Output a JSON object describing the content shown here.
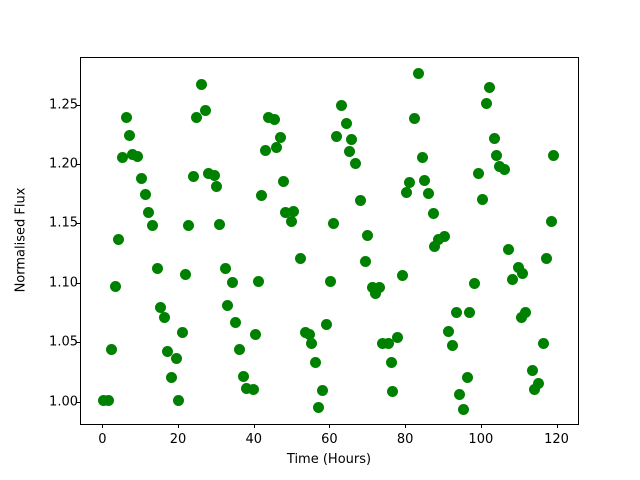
{
  "figure": {
    "background": "#ffffff",
    "text_color": "#000000"
  },
  "chart_data": {
    "type": "scatter",
    "title": "",
    "xlabel": "Time (Hours)",
    "ylabel": "Normalised Flux",
    "legend": null,
    "grid": false,
    "marker": "circle",
    "marker_color": "#008000",
    "marker_diameter_px": 11,
    "xlim": [
      -5.9,
      125.4
    ],
    "ylim": [
      0.982,
      1.29
    ],
    "x_ticks": [
      0,
      20,
      40,
      60,
      80,
      100,
      120
    ],
    "x_tick_labels": [
      "0",
      "20",
      "40",
      "60",
      "80",
      "100",
      "120"
    ],
    "y_ticks": [
      1.0,
      1.05,
      1.1,
      1.15,
      1.2,
      1.25
    ],
    "y_tick_labels": [
      "1.00",
      "1.05",
      "1.10",
      "1.15",
      "1.20",
      "1.25"
    ],
    "points": [
      [
        0.0,
        1.002
      ],
      [
        1.4,
        1.002
      ],
      [
        2.1,
        1.045
      ],
      [
        3.2,
        1.098
      ],
      [
        4.0,
        1.137
      ],
      [
        5.0,
        1.206
      ],
      [
        6.1,
        1.24
      ],
      [
        6.9,
        1.225
      ],
      [
        7.7,
        1.209
      ],
      [
        9.1,
        1.207
      ],
      [
        10.0,
        1.189
      ],
      [
        11.1,
        1.175
      ],
      [
        12.0,
        1.16
      ],
      [
        13.0,
        1.149
      ],
      [
        14.2,
        1.113
      ],
      [
        15.1,
        1.08
      ],
      [
        16.2,
        1.072
      ],
      [
        17.0,
        1.043
      ],
      [
        18.1,
        1.021
      ],
      [
        19.3,
        1.037
      ],
      [
        19.9,
        1.002
      ],
      [
        20.9,
        1.059
      ],
      [
        21.8,
        1.108
      ],
      [
        22.5,
        1.149
      ],
      [
        23.8,
        1.19
      ],
      [
        24.7,
        1.24
      ],
      [
        25.9,
        1.268
      ],
      [
        27.0,
        1.246
      ],
      [
        27.8,
        1.193
      ],
      [
        29.3,
        1.191
      ],
      [
        30.0,
        1.182
      ],
      [
        30.8,
        1.15
      ],
      [
        32.2,
        1.113
      ],
      [
        32.9,
        1.082
      ],
      [
        34.0,
        1.101
      ],
      [
        34.9,
        1.067
      ],
      [
        36.0,
        1.045
      ],
      [
        37.1,
        1.022
      ],
      [
        37.8,
        1.012
      ],
      [
        39.6,
        1.011
      ],
      [
        40.1,
        1.057
      ],
      [
        41.0,
        1.102
      ],
      [
        41.9,
        1.174
      ],
      [
        42.8,
        1.212
      ],
      [
        43.6,
        1.24
      ],
      [
        45.1,
        1.238
      ],
      [
        45.8,
        1.215
      ],
      [
        46.7,
        1.223
      ],
      [
        47.6,
        1.186
      ],
      [
        48.1,
        1.16
      ],
      [
        49.6,
        1.152
      ],
      [
        50.3,
        1.161
      ],
      [
        52.2,
        1.121
      ],
      [
        53.3,
        1.059
      ],
      [
        54.4,
        1.057
      ],
      [
        54.9,
        1.05
      ],
      [
        56.0,
        1.034
      ],
      [
        56.9,
        0.996
      ],
      [
        57.9,
        1.01
      ],
      [
        59.0,
        1.066
      ],
      [
        60.1,
        1.102
      ],
      [
        60.8,
        1.151
      ],
      [
        61.7,
        1.224
      ],
      [
        62.8,
        1.25
      ],
      [
        64.2,
        1.235
      ],
      [
        65.0,
        1.211
      ],
      [
        65.5,
        1.221
      ],
      [
        66.5,
        1.201
      ],
      [
        67.9,
        1.17
      ],
      [
        69.2,
        1.119
      ],
      [
        69.7,
        1.141
      ],
      [
        71.0,
        1.097
      ],
      [
        72.0,
        1.092
      ],
      [
        72.9,
        1.097
      ],
      [
        73.8,
        1.05
      ],
      [
        75.3,
        1.05
      ],
      [
        76.2,
        1.034
      ],
      [
        76.4,
        1.009
      ],
      [
        77.7,
        1.055
      ],
      [
        79.1,
        1.107
      ],
      [
        80.1,
        1.177
      ],
      [
        80.9,
        1.185
      ],
      [
        82.2,
        1.239
      ],
      [
        83.2,
        1.277
      ],
      [
        84.2,
        1.206
      ],
      [
        84.9,
        1.187
      ],
      [
        85.8,
        1.176
      ],
      [
        87.1,
        1.159
      ],
      [
        87.4,
        1.131
      ],
      [
        88.5,
        1.137
      ],
      [
        90.0,
        1.14
      ],
      [
        91.3,
        1.06
      ],
      [
        92.2,
        1.048
      ],
      [
        93.2,
        1.076
      ],
      [
        94.2,
        1.007
      ],
      [
        95.1,
        0.994
      ],
      [
        96.1,
        1.021
      ],
      [
        96.8,
        1.076
      ],
      [
        98.1,
        1.1
      ],
      [
        99.2,
        1.193
      ],
      [
        100.1,
        1.171
      ],
      [
        101.2,
        1.252
      ],
      [
        102.0,
        1.265
      ],
      [
        103.3,
        1.222
      ],
      [
        104.0,
        1.208
      ],
      [
        104.7,
        1.199
      ],
      [
        106.0,
        1.196
      ],
      [
        107.0,
        1.129
      ],
      [
        108.0,
        1.104
      ],
      [
        109.7,
        1.114
      ],
      [
        110.8,
        1.109
      ],
      [
        110.6,
        1.072
      ],
      [
        111.5,
        1.076
      ],
      [
        113.3,
        1.027
      ],
      [
        114.0,
        1.011
      ],
      [
        114.9,
        1.016
      ],
      [
        116.2,
        1.05
      ],
      [
        117.2,
        1.121
      ],
      [
        118.3,
        1.152
      ],
      [
        118.8,
        1.208
      ]
    ]
  }
}
